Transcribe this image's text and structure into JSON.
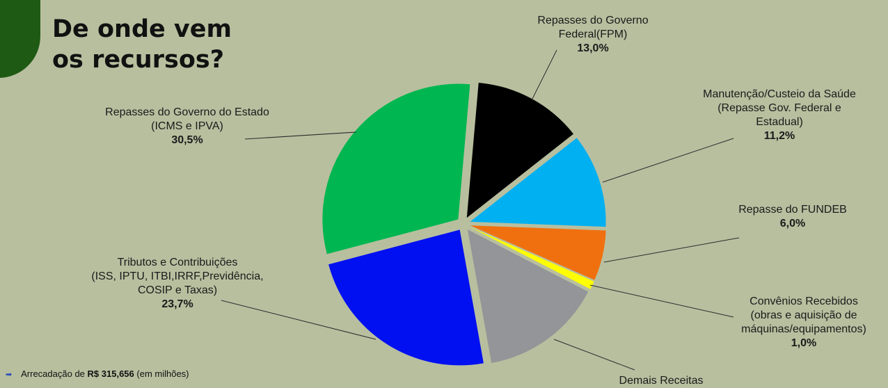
{
  "header": {
    "title_line1": "De onde vem",
    "title_line2": "os recursos?",
    "logo_icon": "dollar-coin-icon",
    "logo_glyph": "$"
  },
  "chart_data": {
    "type": "pie",
    "title": "De onde vem os recursos?",
    "unit": "%",
    "slices": [
      {
        "key": "fpm",
        "lines": [
          "Repasses do Governo",
          "Federal(FPM)"
        ],
        "pct_label": "13,0%",
        "value": 13.0,
        "color": "#000000"
      },
      {
        "key": "saude",
        "lines": [
          "Manutenção/Custeio da Saúde",
          "(Repasse Gov. Federal e",
          "Estadual)"
        ],
        "pct_label": "11,2%",
        "value": 11.2,
        "color": "#00b0f0"
      },
      {
        "key": "fundeb",
        "lines": [
          "Repasse do FUNDEB"
        ],
        "pct_label": "6,0%",
        "value": 6.0,
        "color": "#f0700f"
      },
      {
        "key": "convenios",
        "lines": [
          "Convênios Recebidos",
          "(obras e aquisição de",
          "máquinas/equipamentos)"
        ],
        "pct_label": "1,0%",
        "value": 1.0,
        "color": "#ffff00"
      },
      {
        "key": "demais",
        "lines": [
          "Demais Receitas"
        ],
        "pct_label": "",
        "value": 14.6,
        "color": "#939598"
      },
      {
        "key": "tributos",
        "lines": [
          "Tributos e Contribuições",
          "(ISS, IPTU, ITBI,IRRF,Previdência,",
          "COSIP e Taxas)"
        ],
        "pct_label": "23,7%",
        "value": 23.7,
        "color": "#0010f0"
      },
      {
        "key": "estado",
        "lines": [
          "Repasses do Governo do Estado",
          "(ICMS e IPVA)"
        ],
        "pct_label": "30,5%",
        "value": 30.5,
        "color": "#00b650"
      }
    ]
  },
  "footer": {
    "bullet_icon": "arrow-right-bullet-icon",
    "bullet_glyph": "➡",
    "text_prefix": "Arrecadação de",
    "value": "R$ 315,656",
    "text_suffix": "(em milhões)"
  }
}
